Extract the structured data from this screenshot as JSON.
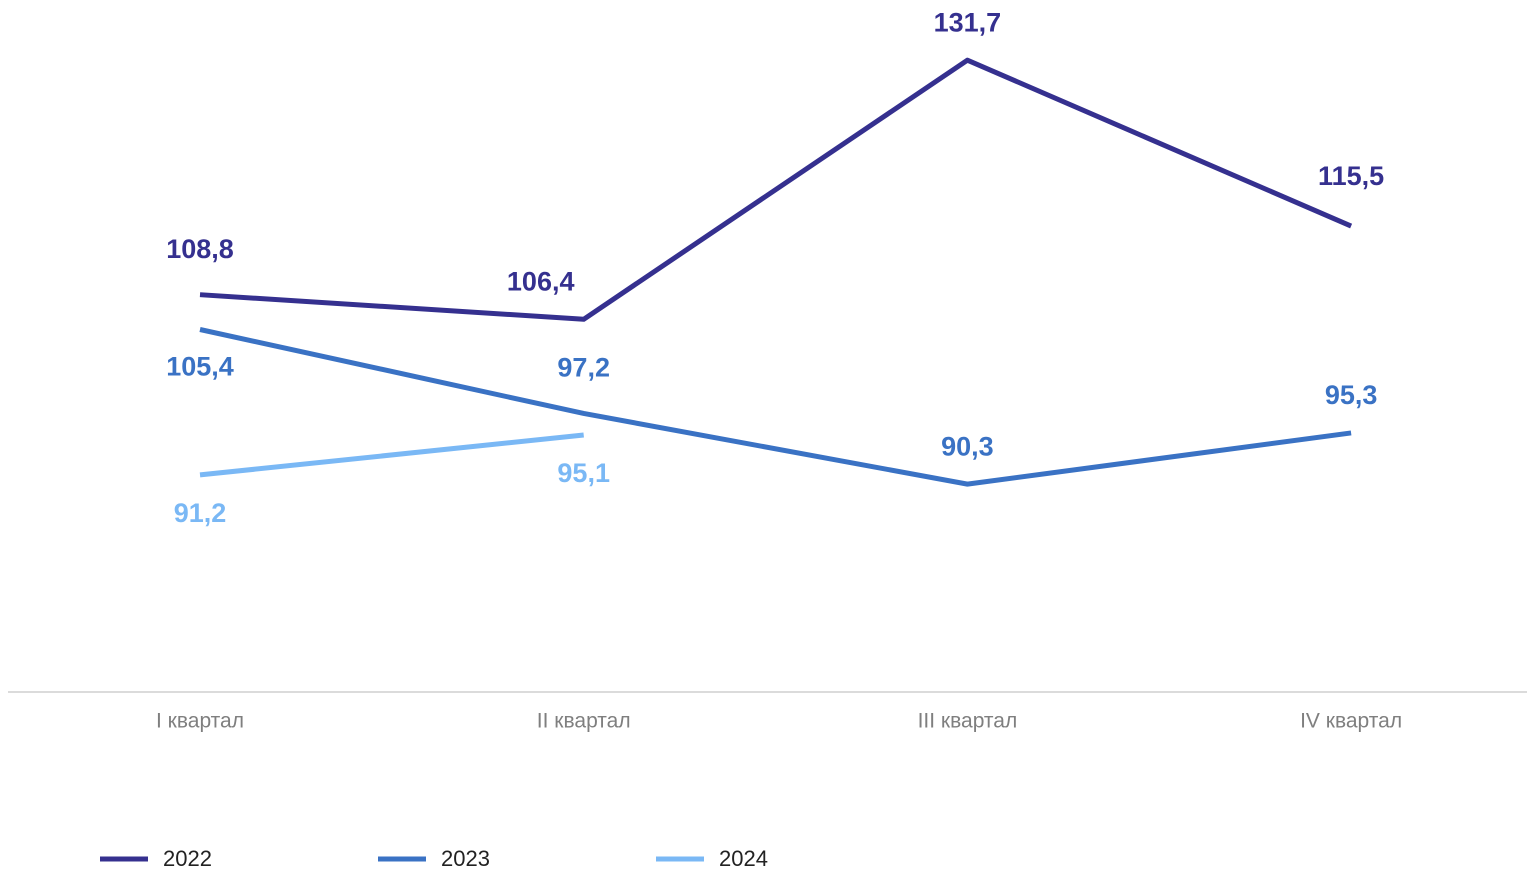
{
  "chart_data": {
    "type": "line",
    "categories": [
      "I квартал",
      "II квартал",
      "III квартал",
      "IV квартал"
    ],
    "series": [
      {
        "name": "2022",
        "color": "#35308f",
        "values": [
          108.8,
          106.4,
          131.7,
          115.5
        ],
        "value_labels": [
          "108,8",
          "106,4",
          "131,7",
          "115,5"
        ]
      },
      {
        "name": "2023",
        "color": "#3a72c4",
        "values": [
          105.4,
          97.2,
          90.3,
          95.3
        ],
        "value_labels": [
          "105,4",
          "97,2",
          "90,3",
          "95,3"
        ]
      },
      {
        "name": "2024",
        "color": "#7ab8f5",
        "values": [
          91.2,
          95.1,
          null,
          null
        ],
        "value_labels": [
          "91,2",
          "95,1",
          null,
          null
        ]
      }
    ],
    "ylim": [
      70,
      135
    ]
  }
}
